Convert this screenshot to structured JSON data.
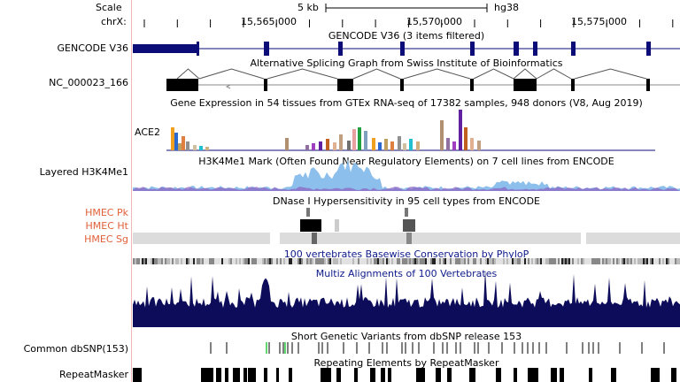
{
  "ruler": {
    "scale_label": "Scale",
    "chrom_label": "chrX:",
    "scale_bar": "5 kb",
    "assembly": "hg38",
    "coords": [
      "15,565,000",
      "15,570,000",
      "15,575,000"
    ]
  },
  "tracks": [
    {
      "key": "gencode",
      "label": "GENCODE V36",
      "title": "GENCODE V36 (3 items filtered)"
    },
    {
      "key": "splice",
      "label": "NC_000023_166",
      "title": "Alternative Splicing Graph from Swiss Institute of Bioinformatics"
    },
    {
      "key": "gtex",
      "label": "",
      "title": "Gene Expression in 54 tissues from GTEx RNA-seq of 17382 samples, 948 donors (V8, Aug 2019)",
      "gene": "ACE2"
    },
    {
      "key": "h3k4me1",
      "label": "Layered H3K4Me1",
      "title": "H3K4Me1 Mark (Often Found Near Regulatory Elements) on 7 cell lines from ENCODE"
    },
    {
      "key": "dnase",
      "label": "",
      "title": "DNase I Hypersensitivity in 95 cell types from ENCODE",
      "sublabels": [
        "HMEC Pk",
        "HMEC Ht",
        "HMEC Sg"
      ]
    },
    {
      "key": "phylop",
      "label": "",
      "title": "100 vertebrates Basewise Conservation by PhyloP"
    },
    {
      "key": "multiz",
      "label": "",
      "title": "Multiz Alignments of 100 Vertebrates"
    },
    {
      "key": "snp",
      "label": "Common dbSNP(153)",
      "title": "Short Genetic Variants from dbSNP release 153"
    },
    {
      "key": "rmsk",
      "label": "RepeatMasker",
      "title": "Repeating Elements by RepeatMasker"
    }
  ],
  "colors": {
    "gene": "#0c0c78",
    "conservation": "#0c0c5a",
    "phylop": "#2a2a9a",
    "dnase_label": "#e0603a",
    "snp_green": "#2ecc40"
  }
}
